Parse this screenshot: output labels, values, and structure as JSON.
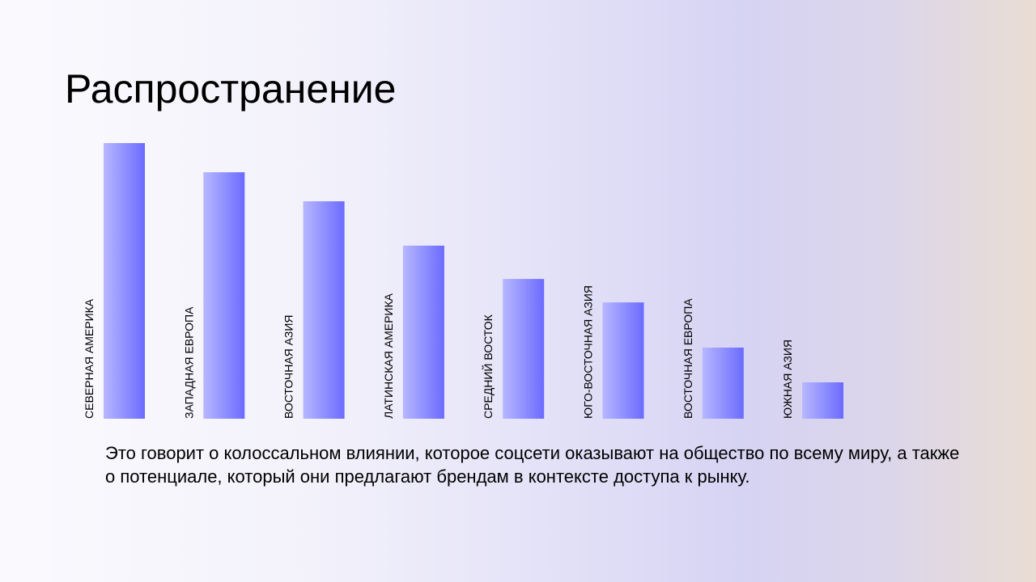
{
  "slide": {
    "title": "Распространение",
    "caption": "Это говорит о колоссальном влиянии, которое соцсети оказывают на общество по всему миру, а также о потенциале, который они предлагают брендам в контексте доступа к рынку."
  },
  "colors": {
    "bar_light": "#b7b7ff",
    "bar_dark": "#6b6bff"
  },
  "chart_data": {
    "type": "bar",
    "title": "",
    "xlabel": "",
    "ylabel": "",
    "categories": [
      "СЕВЕРНАЯ АМЕРИКА",
      "ЗАПАДНАЯ ЕВРОПА",
      "ВОСТОЧНАЯ АЗИЯ",
      "ЛАТИНСКАЯ АМЕРИКА",
      "СРЕДНИЙ ВОСТОК",
      "ЮГО-ВОСТОЧНАЯ АЗИЯ",
      "ВОСТОЧНАЯ ЕВРОПА",
      "ЮЖНАЯ АЗИЯ"
    ],
    "values": [
      100,
      89.4,
      78.9,
      62.8,
      50.7,
      42.2,
      25.8,
      13.2
    ],
    "ylim": [
      0,
      100
    ],
    "grid": false,
    "axes_visible": false,
    "legend": false
  }
}
